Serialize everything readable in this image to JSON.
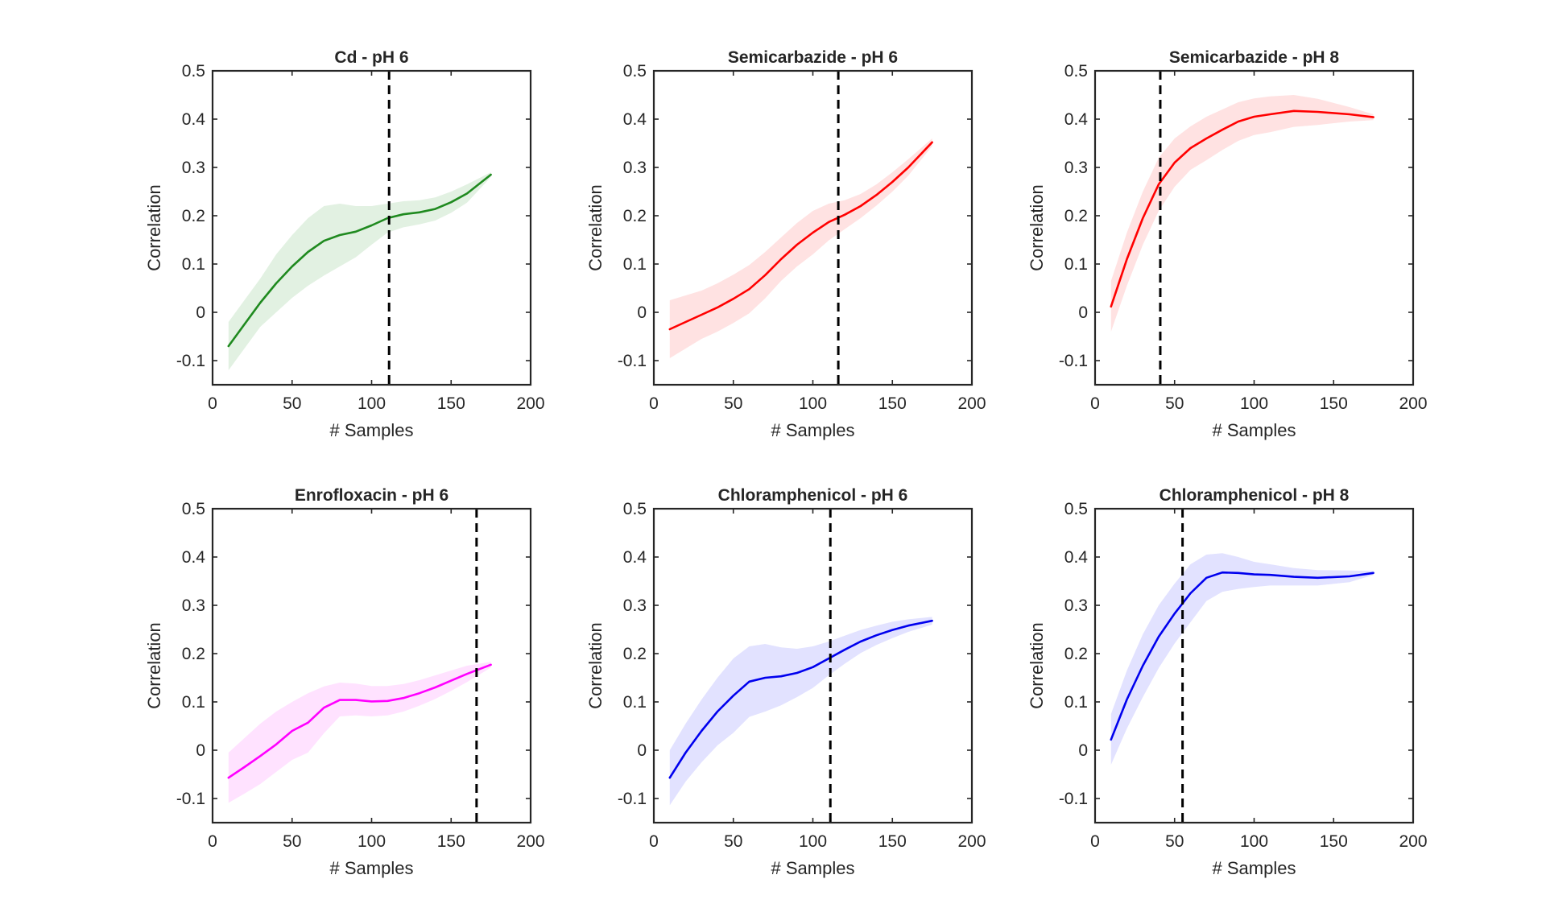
{
  "chart_data": [
    {
      "type": "line",
      "title": "Cd - pH 6",
      "xlabel": "# Samples",
      "ylabel": "Correlation",
      "xlim": [
        0,
        200
      ],
      "ylim": [
        -0.15,
        0.5
      ],
      "xticks": [
        "0",
        "50",
        "100",
        "150",
        "200"
      ],
      "yticks": [
        "-0.1",
        "0",
        "0.1",
        "0.2",
        "0.3",
        "0.4",
        "0.5"
      ],
      "color": "#1f8a1f",
      "fill_color": "#e2f1e2",
      "vline": 111,
      "x": [
        10,
        20,
        30,
        40,
        50,
        60,
        70,
        80,
        90,
        100,
        110,
        120,
        130,
        140,
        150,
        160,
        175
      ],
      "mean": [
        -0.07,
        -0.025,
        0.02,
        0.06,
        0.095,
        0.125,
        0.148,
        0.16,
        0.167,
        0.18,
        0.195,
        0.203,
        0.207,
        0.214,
        0.228,
        0.246,
        0.285
      ],
      "upper": [
        -0.02,
        0.025,
        0.07,
        0.12,
        0.16,
        0.195,
        0.22,
        0.225,
        0.22,
        0.22,
        0.225,
        0.23,
        0.232,
        0.238,
        0.25,
        0.265,
        0.29
      ],
      "lower": [
        -0.12,
        -0.075,
        -0.03,
        0.0,
        0.03,
        0.055,
        0.076,
        0.095,
        0.114,
        0.14,
        0.165,
        0.176,
        0.182,
        0.19,
        0.206,
        0.227,
        0.28
      ]
    },
    {
      "type": "line",
      "title": "Semicarbazide - pH 6",
      "xlabel": "# Samples",
      "ylabel": "Correlation",
      "xlim": [
        0,
        200
      ],
      "ylim": [
        -0.15,
        0.5
      ],
      "xticks": [
        "0",
        "50",
        "100",
        "150",
        "200"
      ],
      "yticks": [
        "-0.1",
        "0",
        "0.1",
        "0.2",
        "0.3",
        "0.4",
        "0.5"
      ],
      "color": "#ff0000",
      "fill_color": "#ffe2e2",
      "vline": 116,
      "x": [
        10,
        20,
        30,
        40,
        50,
        60,
        70,
        80,
        90,
        100,
        110,
        120,
        130,
        140,
        150,
        160,
        175
      ],
      "mean": [
        -0.035,
        -0.02,
        -0.005,
        0.01,
        0.028,
        0.048,
        0.077,
        0.11,
        0.14,
        0.165,
        0.187,
        0.202,
        0.22,
        0.243,
        0.27,
        0.3,
        0.352
      ],
      "upper": [
        0.025,
        0.035,
        0.045,
        0.06,
        0.078,
        0.098,
        0.125,
        0.155,
        0.185,
        0.21,
        0.225,
        0.232,
        0.245,
        0.265,
        0.29,
        0.317,
        0.36
      ],
      "lower": [
        -0.095,
        -0.075,
        -0.055,
        -0.04,
        -0.022,
        -0.002,
        0.029,
        0.065,
        0.095,
        0.12,
        0.149,
        0.172,
        0.195,
        0.221,
        0.25,
        0.283,
        0.344
      ]
    },
    {
      "type": "line",
      "title": "Semicarbazide - pH 8",
      "xlabel": "# Samples",
      "ylabel": "Correlation",
      "xlim": [
        0,
        200
      ],
      "ylim": [
        -0.15,
        0.5
      ],
      "xticks": [
        "0",
        "50",
        "100",
        "150",
        "200"
      ],
      "yticks": [
        "-0.1",
        "0",
        "0.1",
        "0.2",
        "0.3",
        "0.4",
        "0.5"
      ],
      "color": "#ff0000",
      "fill_color": "#ffe2e2",
      "vline": 41,
      "x": [
        10,
        20,
        30,
        40,
        50,
        60,
        70,
        80,
        90,
        100,
        110,
        125,
        140,
        160,
        175
      ],
      "mean": [
        0.012,
        0.11,
        0.195,
        0.265,
        0.31,
        0.34,
        0.36,
        0.378,
        0.395,
        0.405,
        0.41,
        0.417,
        0.415,
        0.41,
        0.404
      ],
      "upper": [
        0.065,
        0.165,
        0.25,
        0.32,
        0.36,
        0.385,
        0.405,
        0.42,
        0.435,
        0.443,
        0.447,
        0.45,
        0.442,
        0.425,
        0.41
      ],
      "lower": [
        -0.04,
        0.055,
        0.14,
        0.21,
        0.26,
        0.295,
        0.315,
        0.336,
        0.355,
        0.367,
        0.373,
        0.384,
        0.388,
        0.395,
        0.398
      ]
    },
    {
      "type": "line",
      "title": "Enrofloxacin - pH 6",
      "xlabel": "# Samples",
      "ylabel": "Correlation",
      "xlim": [
        0,
        200
      ],
      "ylim": [
        -0.15,
        0.5
      ],
      "xticks": [
        "0",
        "50",
        "100",
        "150",
        "200"
      ],
      "yticks": [
        "-0.1",
        "0",
        "0.1",
        "0.2",
        "0.3",
        "0.4",
        "0.5"
      ],
      "color": "#ff00ff",
      "fill_color": "#ffe2ff",
      "vline": 166,
      "x": [
        10,
        20,
        30,
        40,
        50,
        60,
        70,
        80,
        90,
        100,
        110,
        120,
        130,
        140,
        150,
        160,
        175
      ],
      "mean": [
        -0.057,
        -0.035,
        -0.012,
        0.012,
        0.04,
        0.057,
        0.088,
        0.104,
        0.104,
        0.101,
        0.102,
        0.108,
        0.118,
        0.13,
        0.144,
        0.158,
        0.177
      ],
      "upper": [
        -0.005,
        0.025,
        0.055,
        0.08,
        0.1,
        0.118,
        0.132,
        0.14,
        0.138,
        0.133,
        0.133,
        0.137,
        0.145,
        0.155,
        0.165,
        0.175,
        0.183
      ],
      "lower": [
        -0.109,
        -0.09,
        -0.07,
        -0.045,
        -0.02,
        -0.005,
        0.035,
        0.07,
        0.072,
        0.07,
        0.072,
        0.08,
        0.092,
        0.106,
        0.123,
        0.141,
        0.171
      ]
    },
    {
      "type": "line",
      "title": "Chloramphenicol - pH 6",
      "xlabel": "# Samples",
      "ylabel": "Correlation",
      "xlim": [
        0,
        200
      ],
      "ylim": [
        -0.15,
        0.5
      ],
      "xticks": [
        "0",
        "50",
        "100",
        "150",
        "200"
      ],
      "yticks": [
        "-0.1",
        "0",
        "0.1",
        "0.2",
        "0.3",
        "0.4",
        "0.5"
      ],
      "color": "#0000ee",
      "fill_color": "#e2e2ff",
      "vline": 111,
      "x": [
        10,
        20,
        30,
        40,
        50,
        60,
        70,
        80,
        90,
        100,
        110,
        120,
        130,
        140,
        150,
        160,
        175
      ],
      "mean": [
        -0.057,
        -0.005,
        0.04,
        0.08,
        0.113,
        0.142,
        0.15,
        0.153,
        0.16,
        0.172,
        0.19,
        0.208,
        0.225,
        0.238,
        0.249,
        0.258,
        0.268
      ],
      "upper": [
        0.0,
        0.055,
        0.105,
        0.15,
        0.19,
        0.215,
        0.22,
        0.213,
        0.21,
        0.215,
        0.225,
        0.237,
        0.249,
        0.258,
        0.266,
        0.271,
        0.276
      ],
      "lower": [
        -0.114,
        -0.065,
        -0.025,
        0.01,
        0.036,
        0.069,
        0.08,
        0.093,
        0.11,
        0.129,
        0.155,
        0.179,
        0.201,
        0.218,
        0.232,
        0.245,
        0.26
      ]
    },
    {
      "type": "line",
      "title": "Chloramphenicol - pH 8",
      "xlabel": "# Samples",
      "ylabel": "Correlation",
      "xlim": [
        0,
        200
      ],
      "ylim": [
        -0.15,
        0.5
      ],
      "xticks": [
        "0",
        "50",
        "100",
        "150",
        "200"
      ],
      "yticks": [
        "-0.1",
        "0",
        "0.1",
        "0.2",
        "0.3",
        "0.4",
        "0.5"
      ],
      "color": "#0000ee",
      "fill_color": "#e2e2ff",
      "vline": 55,
      "x": [
        10,
        20,
        30,
        40,
        50,
        60,
        70,
        80,
        90,
        100,
        110,
        125,
        140,
        160,
        175
      ],
      "mean": [
        0.022,
        0.105,
        0.175,
        0.235,
        0.283,
        0.325,
        0.357,
        0.368,
        0.367,
        0.364,
        0.363,
        0.359,
        0.357,
        0.36,
        0.367
      ],
      "upper": [
        0.075,
        0.165,
        0.24,
        0.3,
        0.345,
        0.385,
        0.405,
        0.408,
        0.4,
        0.39,
        0.385,
        0.377,
        0.373,
        0.372,
        0.371
      ],
      "lower": [
        -0.03,
        0.045,
        0.11,
        0.17,
        0.221,
        0.265,
        0.309,
        0.328,
        0.334,
        0.338,
        0.341,
        0.341,
        0.341,
        0.348,
        0.363
      ]
    }
  ]
}
